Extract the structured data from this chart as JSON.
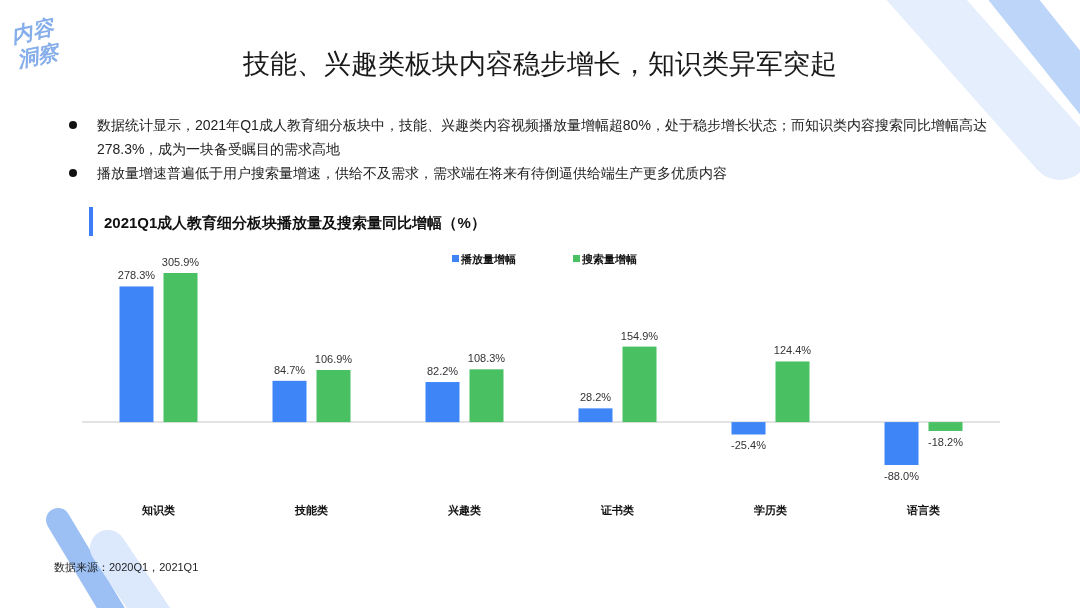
{
  "chart_data": {
    "type": "bar",
    "title": "技能、兴趣类板块内容稳步增长，知识类异军突起",
    "subtitle": "2021Q1成人教育细分板块播放量及搜索量同比增幅（%）",
    "categories": [
      "知识类",
      "技能类",
      "兴趣类",
      "证书类",
      "学历类",
      "语言类"
    ],
    "series": [
      {
        "name": "播放量增幅",
        "color": "#3e86f8",
        "values": [
          278.3,
          84.7,
          82.2,
          28.2,
          -25.4,
          -88.0
        ],
        "value_labels": [
          "278.3%",
          "84.7%",
          "82.2%",
          "28.2%",
          "-25.4%",
          "-88.0%"
        ]
      },
      {
        "name": "搜索量增幅",
        "color": "#49c163",
        "values": [
          305.9,
          106.9,
          108.3,
          154.9,
          124.4,
          -18.2
        ],
        "value_labels": [
          "305.9%",
          "106.9%",
          "108.3%",
          "154.9%",
          "124.4%",
          "-18.2%"
        ]
      }
    ],
    "legend": "top",
    "annotations": [
      "内容洞察",
      "数据统计显示，2021年Q1成人教育细分板块中，技能、兴趣类内容视频播放量增幅超80%，处于稳步增长状态；而知识类内容搜索同比增幅高达278.3%，成为一块备受瞩目的需求高地",
      "播放量增速普遍低于用户搜索量增速，供给不及需求，需求端在将来有待倒逼供给端生产更多优质内容",
      "数据来源：2020Q1，2021Q1"
    ]
  }
}
